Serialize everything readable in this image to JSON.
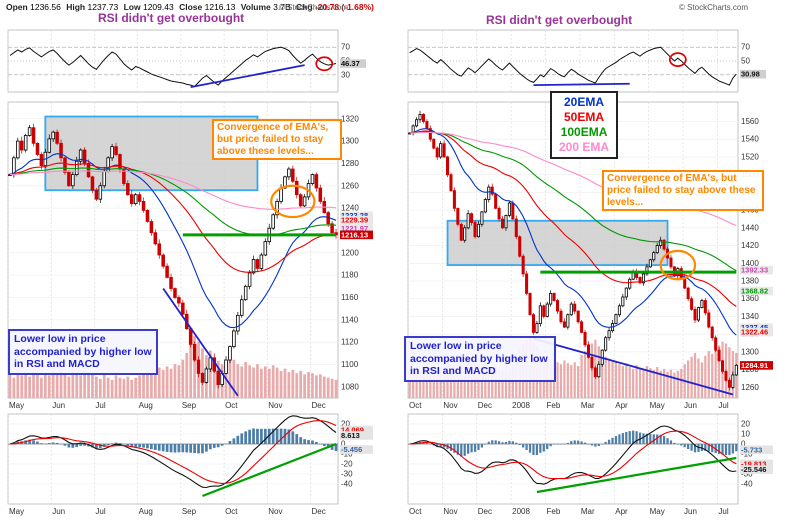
{
  "header": {
    "open_l": "Open",
    "open_v": "1236.56",
    "high_l": "High",
    "high_v": "1237.73",
    "low_l": "Low",
    "low_v": "1209.43",
    "close_l": "Close",
    "close_v": "1216.13",
    "vol_l": "Volume",
    "vol_v": "3.7B",
    "chg_l": "Chg",
    "chg_v": "-20.78 (-1.68%)"
  },
  "copyright": "© StockCharts.com",
  "annotations": {
    "rsi_note": "RSI didn't get overbought",
    "ema_note": "Convergence of EMA's, but price failed to stay above these levels...",
    "low_note": "Lower low in price accompanied by higher low in RSI and MACD"
  },
  "legend": [
    {
      "label": "20EMA",
      "color": "#0033cc"
    },
    {
      "label": "50EMA",
      "color": "#ee0000"
    },
    {
      "label": "100EMA",
      "color": "#009900"
    },
    {
      "label": "200 EMA",
      "color": "#ff88cc"
    }
  ],
  "colors": {
    "candle_up": "#000000",
    "candle_down": "#cc0000",
    "ema20": "#0033cc",
    "ema50": "#ee0000",
    "ema100": "#009900",
    "ema200": "#ff88cc",
    "histogram": "#4d7ea8",
    "volume": "#e8aaaa",
    "support_green": "#00a000",
    "box_border": "#33aaee",
    "annotation_orange": "#ff8800",
    "annotation_blue": "#2222cc",
    "annotation_purple": "#993399",
    "chg_red": "#cc0000"
  },
  "chart_data": [
    {
      "type": "candlestick",
      "panels": [
        "RSI",
        "price with EMA(20,50,100,200) and volume",
        "MACD(12,26,9)"
      ],
      "months": [
        "May",
        "Jun",
        "Jul",
        "Aug",
        "Sep",
        "Oct",
        "Nov",
        "Dec"
      ],
      "month_idx": [
        0,
        11,
        22,
        33,
        44,
        55,
        66,
        77
      ],
      "close": [
        1270,
        1285,
        1300,
        1292,
        1305,
        1312,
        1298,
        1288,
        1278,
        1290,
        1302,
        1308,
        1298,
        1285,
        1272,
        1260,
        1270,
        1282,
        1292,
        1280,
        1268,
        1256,
        1248,
        1260,
        1273,
        1285,
        1295,
        1288,
        1275,
        1262,
        1252,
        1244,
        1252,
        1246,
        1238,
        1228,
        1218,
        1208,
        1198,
        1188,
        1178,
        1168,
        1160,
        1155,
        1145,
        1132,
        1118,
        1104,
        1092,
        1084,
        1096,
        1106,
        1094,
        1082,
        1092,
        1104,
        1116,
        1130,
        1144,
        1158,
        1170,
        1182,
        1194,
        1186,
        1198,
        1210,
        1222,
        1234,
        1246,
        1258,
        1268,
        1275,
        1264,
        1252,
        1242,
        1250,
        1262,
        1270,
        1258,
        1246,
        1236,
        1226,
        1218,
        1216.13
      ],
      "rsi": [
        58,
        62,
        66,
        63,
        67,
        69,
        64,
        60,
        56,
        60,
        64,
        66,
        61,
        55,
        49,
        44,
        48,
        53,
        58,
        52,
        46,
        41,
        38,
        45,
        52,
        58,
        63,
        60,
        53,
        46,
        41,
        37,
        42,
        40,
        37,
        34,
        31,
        29,
        27,
        25,
        23,
        21,
        20,
        19,
        18,
        16,
        15,
        13,
        19,
        25,
        29,
        24,
        19,
        15,
        21,
        26,
        31,
        36,
        41,
        46,
        51,
        55,
        59,
        56,
        60,
        64,
        66,
        68,
        69,
        70,
        68,
        65,
        58,
        52,
        47,
        51,
        56,
        60,
        54,
        49,
        46,
        44,
        45,
        46.37
      ],
      "volume": [
        22,
        18,
        25,
        20,
        24,
        19,
        23,
        21,
        18,
        22,
        20,
        24,
        21,
        26,
        22,
        19,
        25,
        23,
        20,
        24,
        22,
        21,
        19,
        17,
        21,
        18,
        16,
        20,
        18,
        17,
        19,
        16,
        18,
        20,
        22,
        24,
        26,
        23,
        27,
        25,
        28,
        26,
        30,
        29,
        34,
        40,
        48,
        55,
        50,
        44,
        38,
        42,
        36,
        33,
        30,
        32,
        36,
        34,
        30,
        28,
        32,
        29,
        27,
        30,
        26,
        28,
        26,
        29,
        27,
        24,
        26,
        23,
        25,
        22,
        24,
        21,
        23,
        22,
        20,
        21,
        19,
        18,
        17,
        16
      ],
      "price_range": [
        1070,
        1335
      ],
      "price_ticks": [
        1320,
        1300,
        1280,
        1260,
        1240,
        1220,
        1200,
        1180,
        1160,
        1140,
        1120,
        1100,
        1080
      ],
      "price_labels": [
        {
          "text": "1233.28",
          "value": 1233.28,
          "color": "#0033cc",
          "bg": "#e8e8e8"
        },
        {
          "text": "1229.39",
          "value": 1229.39,
          "color": "#ee0000",
          "bg": "#e8e8e8"
        },
        {
          "text": "1221.97",
          "value": 1221.97,
          "color": "#cc44aa",
          "bg": "#e8e8e8"
        },
        {
          "text": "1216.13",
          "value": 1216.13,
          "color": "#ffffff",
          "bg": "#cc0000"
        }
      ],
      "rsi_ticks": [
        70,
        50,
        30
      ],
      "rsi_last": "46.37",
      "macd_range": [
        -60,
        30
      ],
      "macd_ticks": [
        20,
        10,
        0,
        -10,
        -20,
        -30,
        -40
      ],
      "macd_labels": [
        {
          "text": "14.069",
          "value": 14.069,
          "color": "#ee0000"
        },
        {
          "text": "8.613",
          "value": 8.613,
          "color": "#111111"
        },
        {
          "text": "-5.456",
          "value": -5.456,
          "color": "#3366aa"
        }
      ],
      "shaded_box": {
        "i0": 9,
        "i1": 63,
        "p0": 1256,
        "p1": 1322
      },
      "green_line": {
        "i0": 44,
        "i1": 83,
        "price": 1216
      },
      "ellipse": {
        "i": 72,
        "price": 1246,
        "ri": 5.5,
        "rp": 14
      },
      "price_trendline": {
        "i0": 39,
        "p0": 1168,
        "i1": 58,
        "p1": 1072
      },
      "rsi_trendline": {
        "i0": 46,
        "r0": 12,
        "i1": 75,
        "r1": 44
      },
      "rsi_circle": {
        "i": 80,
        "r": 46
      },
      "macd_trendline": {
        "i0": 49,
        "m0": -52,
        "i1": 83,
        "m1": 0
      }
    },
    {
      "type": "candlestick",
      "panels": [
        "RSI",
        "price with EMA(20,50,100,200) and volume",
        "MACD(12,26,9)"
      ],
      "months": [
        "Oct",
        "Nov",
        "Dec",
        "2008",
        "Feb",
        "Mar",
        "Apr",
        "May",
        "Jun",
        "Jul"
      ],
      "month_idx": [
        0,
        10,
        20,
        30,
        40,
        50,
        60,
        70,
        80,
        90
      ],
      "close": [
        1547,
        1555,
        1562,
        1568,
        1560,
        1552,
        1540,
        1530,
        1520,
        1535,
        1520,
        1500,
        1482,
        1462,
        1444,
        1426,
        1440,
        1456,
        1446,
        1430,
        1444,
        1458,
        1472,
        1486,
        1478,
        1462,
        1450,
        1440,
        1454,
        1468,
        1450,
        1430,
        1408,
        1388,
        1366,
        1342,
        1322,
        1332,
        1352,
        1340,
        1354,
        1366,
        1358,
        1346,
        1334,
        1328,
        1342,
        1354,
        1346,
        1334,
        1322,
        1308,
        1294,
        1282,
        1272,
        1286,
        1302,
        1316,
        1324,
        1332,
        1342,
        1352,
        1362,
        1372,
        1382,
        1390,
        1384,
        1378,
        1388,
        1396,
        1404,
        1412,
        1420,
        1426,
        1416,
        1406,
        1396,
        1386,
        1394,
        1384,
        1372,
        1360,
        1348,
        1336,
        1350,
        1358,
        1344,
        1328,
        1316,
        1302,
        1290,
        1278,
        1268,
        1260,
        1274,
        1284.91
      ],
      "rsi": [
        62,
        65,
        68,
        66,
        62,
        58,
        54,
        50,
        47,
        52,
        48,
        43,
        38,
        34,
        30,
        28,
        34,
        40,
        37,
        33,
        38,
        43,
        48,
        53,
        49,
        44,
        40,
        37,
        42,
        47,
        42,
        37,
        32,
        28,
        24,
        21,
        19,
        24,
        30,
        27,
        33,
        39,
        36,
        32,
        29,
        27,
        33,
        38,
        35,
        31,
        28,
        25,
        22,
        20,
        18,
        26,
        33,
        39,
        42,
        45,
        48,
        52,
        55,
        58,
        61,
        63,
        60,
        57,
        61,
        64,
        66,
        68,
        69,
        70,
        65,
        60,
        55,
        50,
        54,
        50,
        45,
        40,
        36,
        32,
        38,
        41,
        36,
        31,
        27,
        24,
        21,
        19,
        17,
        15,
        25,
        30.98
      ],
      "volume": [
        28,
        25,
        30,
        27,
        32,
        29,
        26,
        31,
        28,
        33,
        36,
        40,
        38,
        42,
        45,
        48,
        44,
        40,
        38,
        42,
        36,
        34,
        38,
        32,
        30,
        35,
        31,
        29,
        33,
        30,
        42,
        48,
        52,
        58,
        62,
        66,
        60,
        55,
        50,
        46,
        44,
        40,
        42,
        38,
        36,
        40,
        37,
        35,
        38,
        34,
        46,
        50,
        54,
        58,
        62,
        55,
        48,
        44,
        42,
        40,
        38,
        36,
        34,
        37,
        33,
        31,
        35,
        32,
        30,
        34,
        32,
        30,
        33,
        29,
        31,
        28,
        30,
        27,
        29,
        31,
        36,
        40,
        44,
        48,
        42,
        38,
        45,
        50,
        47,
        52,
        56,
        60,
        58,
        54,
        50,
        48
      ],
      "price_range": [
        1248,
        1582
      ],
      "price_ticks": [
        1560,
        1540,
        1520,
        1500,
        1480,
        1460,
        1440,
        1420,
        1400,
        1380,
        1360,
        1340,
        1320,
        1300,
        1280,
        1260
      ],
      "price_labels": [
        {
          "text": "1392.33",
          "value": 1392.33,
          "color": "#cc44aa",
          "bg": "#e8e8e8"
        },
        {
          "text": "1368.82",
          "value": 1368.82,
          "color": "#009900",
          "bg": "#e8e8e8"
        },
        {
          "text": "1327.45",
          "value": 1327.45,
          "color": "#0033cc",
          "bg": "#e8e8e8"
        },
        {
          "text": "1322.46",
          "value": 1322.46,
          "color": "#ee0000",
          "bg": "#e8e8e8"
        },
        {
          "text": "1284.91",
          "value": 1284.91,
          "color": "#ffffff",
          "bg": "#cc0000"
        }
      ],
      "rsi_ticks": [
        70,
        50,
        30
      ],
      "rsi_last": "30.98",
      "macd_range": [
        -60,
        30
      ],
      "macd_ticks": [
        20,
        10,
        0,
        -10,
        -20,
        -30,
        -40
      ],
      "macd_labels": [
        {
          "text": "-5.733",
          "value": -5.733,
          "color": "#3366aa"
        },
        {
          "text": "-19.813",
          "value": -19.813,
          "color": "#ee0000"
        },
        {
          "text": "-25.546",
          "value": -25.546,
          "color": "#111111"
        }
      ],
      "shaded_box": {
        "i0": 11,
        "i1": 75,
        "p0": 1398,
        "p1": 1448
      },
      "green_line": {
        "i0": 38,
        "i1": 95,
        "price": 1390
      },
      "ellipse": {
        "i": 78,
        "price": 1398,
        "ri": 5,
        "rp": 16
      },
      "price_trendline": {
        "i0": 36,
        "p0": 1315,
        "i1": 94,
        "p1": 1252
      },
      "rsi_trendline": {
        "i0": 36,
        "r0": 15,
        "i1": 64,
        "r1": 17
      },
      "rsi_circle": {
        "i": 78,
        "r": 52
      },
      "macd_trendline": {
        "i0": 37,
        "m0": -48,
        "i1": 95,
        "m1": -14
      }
    }
  ]
}
